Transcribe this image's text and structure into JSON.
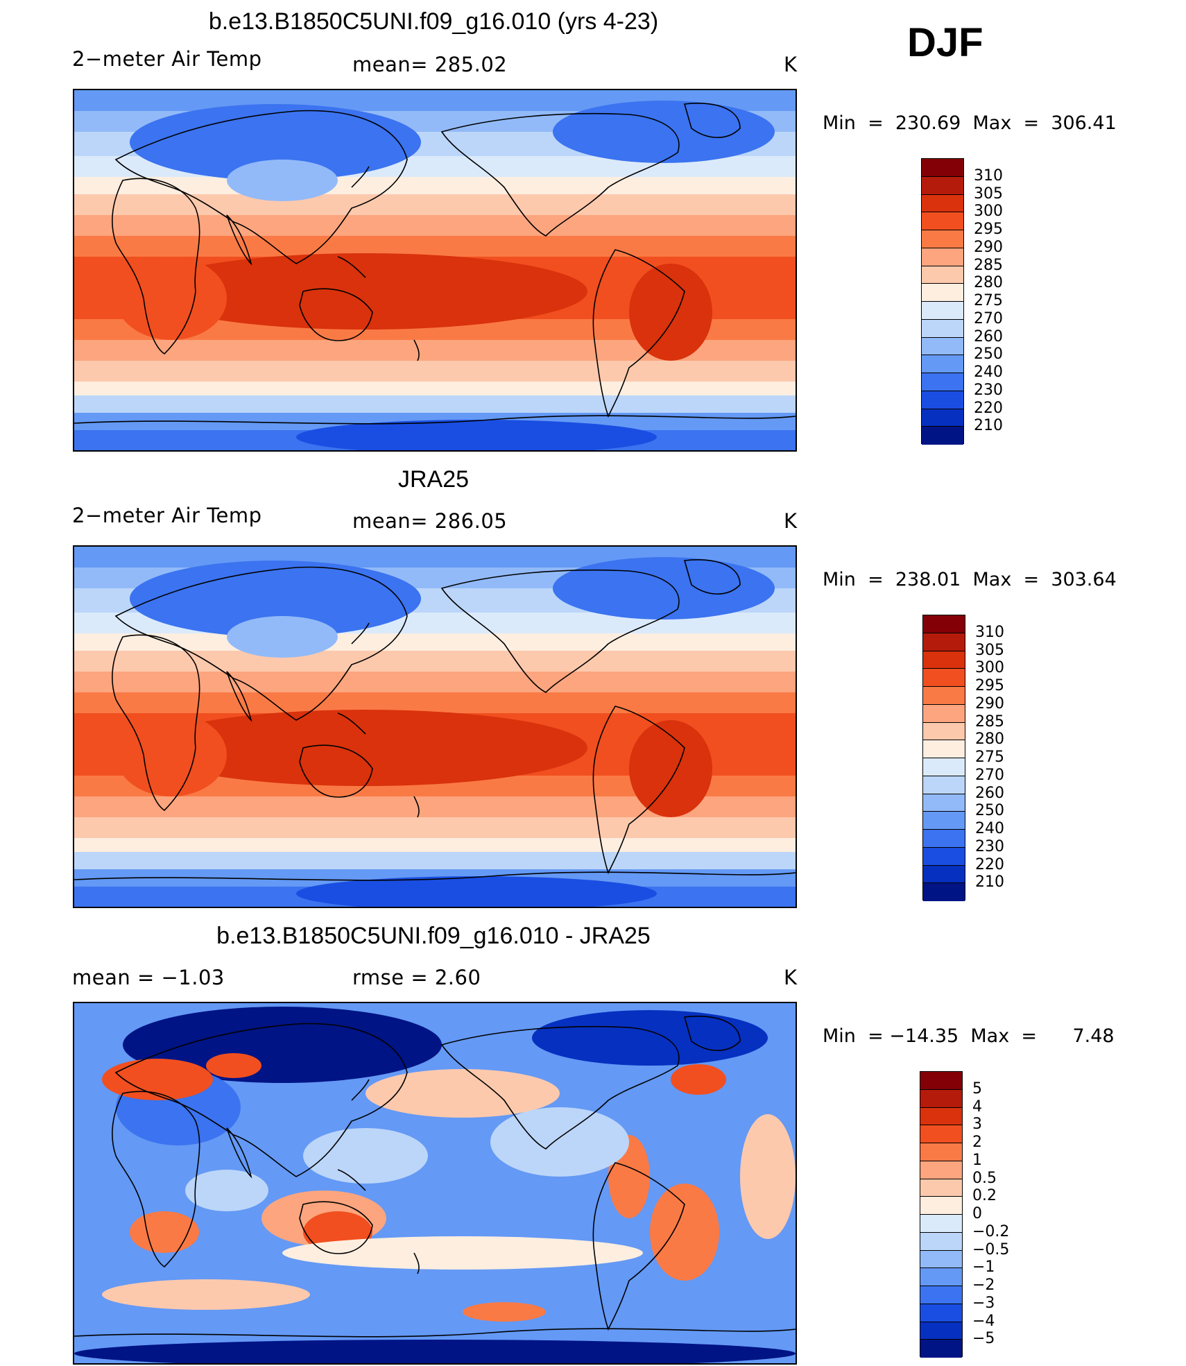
{
  "season": "DJF",
  "panels": [
    {
      "title": "b.e13.B1850C5UNI.f09_g16.010 (yrs 4-23)",
      "left_label": "2−meter Air Temp",
      "center_label": "mean= 285.02",
      "units": "K",
      "minmax": "Min  =  230.69  Max  =  306.41",
      "kind": "abs"
    },
    {
      "title": "JRA25",
      "left_label": "2−meter Air Temp",
      "center_label": "mean= 286.05",
      "units": "K",
      "minmax": "Min  =  238.01  Max  =  303.64",
      "kind": "abs"
    },
    {
      "title": "b.e13.B1850C5UNI.f09_g16.010 - JRA25",
      "left_label": "mean  =    −1.03",
      "center_label": "rmse  =     2.60",
      "units": "K",
      "minmax": "Min  = −14.35  Max  =      7.48",
      "kind": "diff"
    }
  ],
  "colorbars": {
    "abs": {
      "labels": [
        "310",
        "305",
        "300",
        "295",
        "290",
        "285",
        "280",
        "275",
        "270",
        "260",
        "250",
        "240",
        "230",
        "220",
        "210"
      ],
      "colors": [
        "#830006",
        "#b51b0b",
        "#d9320c",
        "#f14f1f",
        "#fa7a45",
        "#fca57e",
        "#fdc9ad",
        "#fdeee0",
        "#dbeafb",
        "#bcd6f9",
        "#92baf8",
        "#6499f5",
        "#3b73f0",
        "#1a4ee2",
        "#0630c0",
        "#001485"
      ]
    },
    "diff": {
      "labels": [
        "5",
        "4",
        "3",
        "2",
        "1",
        "0.5",
        "0.2",
        "0",
        "−0.2",
        "−0.5",
        "−1",
        "−2",
        "−3",
        "−4",
        "−5"
      ],
      "colors": [
        "#830006",
        "#b51b0b",
        "#d9320c",
        "#f14f1f",
        "#fa7a45",
        "#fca57e",
        "#fdc9ad",
        "#fdeee0",
        "#dbeafb",
        "#bcd6f9",
        "#92baf8",
        "#6499f5",
        "#3b73f0",
        "#1a4ee2",
        "#0630c0",
        "#001485"
      ]
    }
  }
}
